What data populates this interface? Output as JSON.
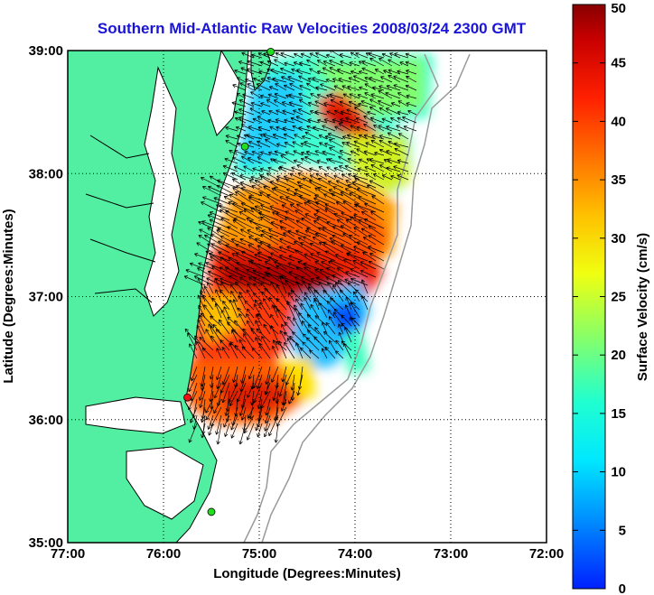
{
  "title": "Southern Mid-Atlantic Raw Velocities 2008/03/24 2300 GMT",
  "map": {
    "xlabel": "Longitude (Degrees:Minutes)",
    "ylabel": "Latitude (Degrees:Minutes)",
    "lon_ticks": [
      "77:00",
      "76:00",
      "75:00",
      "74:00",
      "73:00",
      "72:00"
    ],
    "lat_ticks": [
      "39:00",
      "38:00",
      "37:00",
      "36:00",
      "35:00"
    ],
    "lon_range": [
      -77,
      -72
    ],
    "lat_range": [
      35,
      39
    ],
    "grid": true,
    "land_color": "#52eea2",
    "water_color": "#ffffff"
  },
  "colorbar": {
    "label": "Surface Velocity (cm/s)",
    "min": 0,
    "max": 50,
    "ticks": [
      "50",
      "45",
      "40",
      "35",
      "30",
      "25",
      "20",
      "15",
      "10",
      "5",
      "0"
    ]
  },
  "stations": [
    {
      "name": "",
      "lon": -74.88,
      "lat": 38.99,
      "color": "#22dd22"
    },
    {
      "name": "",
      "lon": -75.15,
      "lat": 38.22,
      "color": "#22dd22"
    },
    {
      "name": "",
      "lon": -75.75,
      "lat": 36.18,
      "color": "#ee1111"
    },
    {
      "name": "",
      "lon": -75.5,
      "lat": 35.25,
      "color": "#22dd22"
    }
  ]
}
